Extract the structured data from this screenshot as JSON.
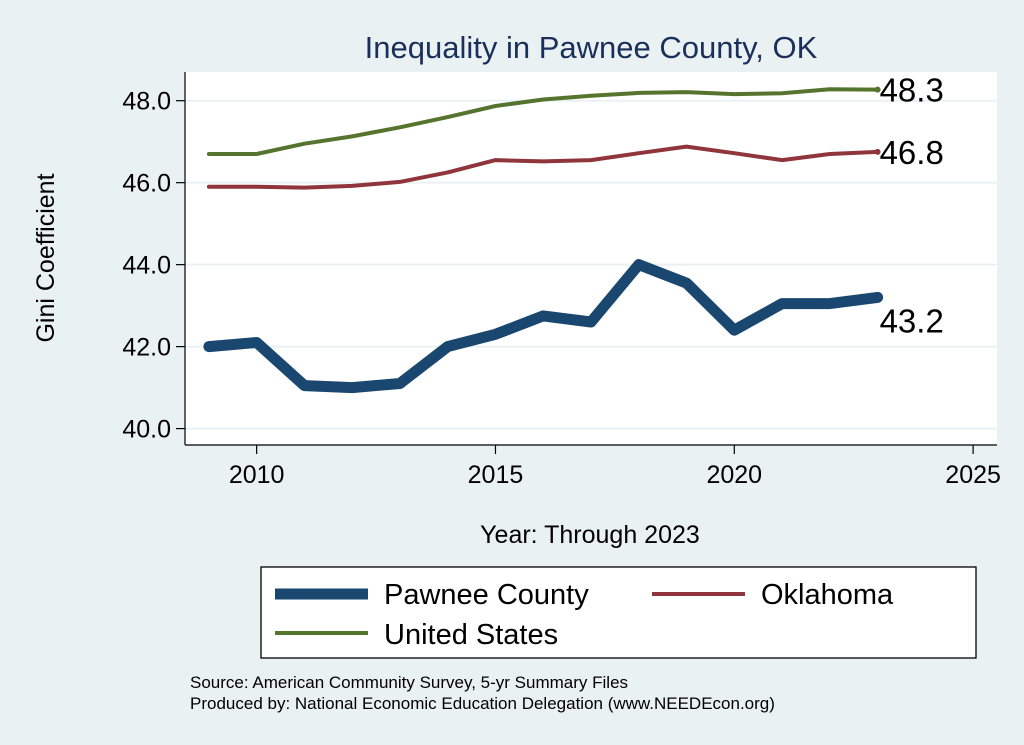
{
  "chart_data": {
    "type": "line",
    "title": "Inequality in Pawnee County, OK",
    "xlabel": "Year: Through 2023",
    "ylabel": "Gini Coefficient",
    "xlim": [
      2008.5,
      2025.5
    ],
    "ylim": [
      39.6,
      48.7
    ],
    "xticks": [
      2010,
      2015,
      2020,
      2025
    ],
    "yticks": [
      40.0,
      42.0,
      44.0,
      46.0,
      48.0
    ],
    "ytick_labels": [
      "40.0",
      "42.0",
      "44.0",
      "46.0",
      "48.0"
    ],
    "x": [
      2009,
      2010,
      2011,
      2012,
      2013,
      2014,
      2015,
      2016,
      2017,
      2018,
      2019,
      2020,
      2021,
      2022,
      2023
    ],
    "series": [
      {
        "name": "Pawnee County",
        "color": "#1a476f",
        "values": [
          42.0,
          42.1,
          41.05,
          41.0,
          41.1,
          42.0,
          42.3,
          42.75,
          42.6,
          44.0,
          43.55,
          42.4,
          43.05,
          43.05,
          43.2
        ],
        "end_label": "43.2"
      },
      {
        "name": "Oklahoma",
        "color": "#90353b",
        "values": [
          45.9,
          45.9,
          45.88,
          45.92,
          46.02,
          46.25,
          46.55,
          46.52,
          46.55,
          46.72,
          46.88,
          46.72,
          46.55,
          46.7,
          46.75
        ],
        "end_label": "46.8"
      },
      {
        "name": "United States",
        "color": "#55752f",
        "values": [
          46.7,
          46.7,
          46.95,
          47.13,
          47.35,
          47.6,
          47.87,
          48.03,
          48.12,
          48.19,
          48.21,
          48.16,
          48.18,
          48.28,
          48.27
        ],
        "end_label": "48.3"
      }
    ],
    "legend": {
      "position": "bottom",
      "items": [
        "Pawnee County",
        "Oklahoma",
        "United States"
      ]
    },
    "source_note": "Source: American Community Survey, 5-yr Summary Files",
    "producer_note": "Produced by: National Economic Education Delegation (www.NEEDEcon.org)"
  }
}
